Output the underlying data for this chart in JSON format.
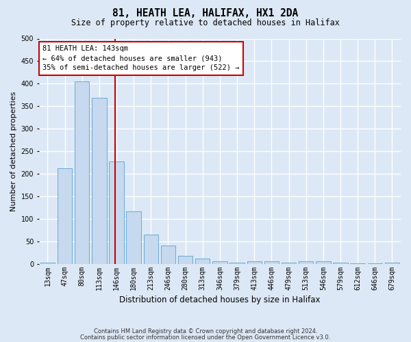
{
  "title": "81, HEATH LEA, HALIFAX, HX1 2DA",
  "subtitle": "Size of property relative to detached houses in Halifax",
  "xlabel": "Distribution of detached houses by size in Halifax",
  "ylabel": "Number of detached properties",
  "categories": [
    "13sqm",
    "47sqm",
    "80sqm",
    "113sqm",
    "146sqm",
    "180sqm",
    "213sqm",
    "246sqm",
    "280sqm",
    "313sqm",
    "346sqm",
    "379sqm",
    "413sqm",
    "446sqm",
    "479sqm",
    "513sqm",
    "546sqm",
    "579sqm",
    "612sqm",
    "646sqm",
    "679sqm"
  ],
  "values": [
    2,
    212,
    405,
    368,
    228,
    117,
    65,
    40,
    18,
    12,
    6,
    3,
    5,
    5,
    2,
    6,
    6,
    2,
    1,
    1,
    2
  ],
  "bar_color": "#c6d9ee",
  "bar_edge_color": "#6aaad4",
  "bg_color": "#dce8f5",
  "fig_color": "#dce8f5",
  "grid_color": "#ffffff",
  "ylim": [
    0,
    500
  ],
  "yticks": [
    0,
    50,
    100,
    150,
    200,
    250,
    300,
    350,
    400,
    450,
    500
  ],
  "marker_color": "#cc0000",
  "annotation_title": "81 HEATH LEA: 143sqm",
  "annotation_line1": "← 64% of detached houses are smaller (943)",
  "annotation_line2": "35% of semi-detached houses are larger (522) →",
  "annotation_box_color": "#cc0000",
  "footnote1": "Contains HM Land Registry data © Crown copyright and database right 2024.",
  "footnote2": "Contains public sector information licensed under the Open Government Licence v3.0.",
  "bar_width": 0.85,
  "title_fontsize": 10.5,
  "subtitle_fontsize": 8.5,
  "ylabel_fontsize": 8,
  "xlabel_fontsize": 8.5,
  "tick_fontsize": 7
}
